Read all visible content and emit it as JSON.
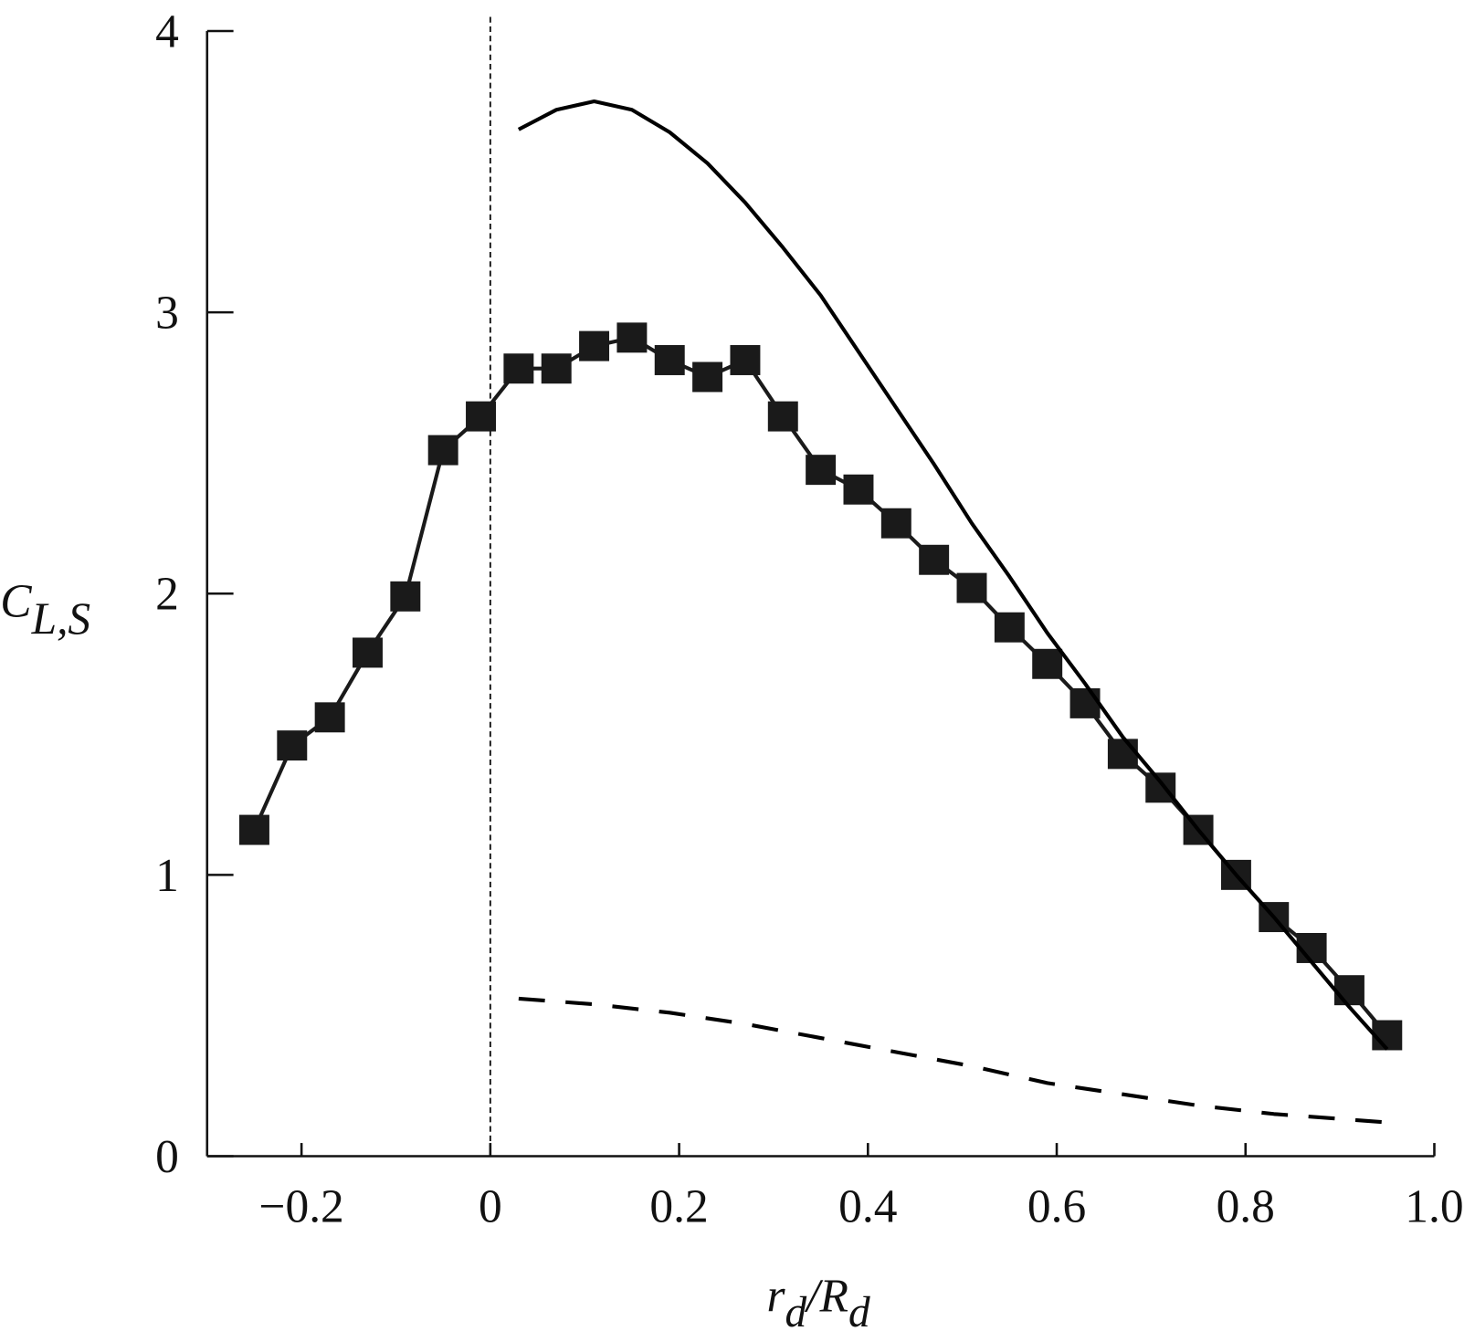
{
  "chart_data": {
    "type": "line",
    "ylabel": {
      "base": "C",
      "subscript": "L,S"
    },
    "xlabel": [
      "r",
      "d",
      "/",
      "R",
      "d"
    ],
    "xlim": [
      -0.3,
      1.0
    ],
    "ylim": [
      0,
      4
    ],
    "xticks": [
      {
        "value": -0.2,
        "label": "−0.2"
      },
      0,
      0.2,
      0.4,
      0.6,
      0.8,
      {
        "value": 1.0,
        "label": "1.0"
      }
    ],
    "yticks": [
      0,
      1,
      2,
      3,
      4
    ],
    "vline": 0,
    "series": [
      {
        "style": "markers",
        "color": "#1a1a1a",
        "x": [
          -0.25,
          -0.21,
          -0.17,
          -0.13,
          -0.09,
          -0.05,
          -0.01,
          0.03,
          0.07,
          0.11,
          0.15,
          0.19,
          0.23,
          0.27,
          0.31,
          0.35,
          0.39,
          0.43,
          0.47,
          0.51,
          0.55,
          0.59,
          0.63,
          0.67,
          0.71,
          0.75,
          0.79,
          0.83,
          0.87,
          0.91,
          0.95
        ],
        "values": [
          1.16,
          1.46,
          1.56,
          1.79,
          1.99,
          2.51,
          2.63,
          2.8,
          2.8,
          2.88,
          2.91,
          2.83,
          2.77,
          2.83,
          2.63,
          2.44,
          2.37,
          2.25,
          2.12,
          2.02,
          1.88,
          1.75,
          1.61,
          1.43,
          1.31,
          1.16,
          1.0,
          0.85,
          0.74,
          0.59,
          0.43
        ]
      },
      {
        "style": "solid",
        "color": "#000000",
        "x": [
          0.03,
          0.07,
          0.11,
          0.15,
          0.19,
          0.23,
          0.27,
          0.31,
          0.35,
          0.39,
          0.43,
          0.47,
          0.51,
          0.55,
          0.59,
          0.63,
          0.67,
          0.71,
          0.75,
          0.79,
          0.83,
          0.87,
          0.91,
          0.95
        ],
        "values": [
          3.65,
          3.72,
          3.75,
          3.72,
          3.64,
          3.53,
          3.39,
          3.23,
          3.06,
          2.86,
          2.66,
          2.46,
          2.25,
          2.06,
          1.86,
          1.68,
          1.49,
          1.33,
          1.16,
          1.0,
          0.85,
          0.69,
          0.53,
          0.38
        ]
      },
      {
        "style": "dashed",
        "color": "#000000",
        "x": [
          0.03,
          0.11,
          0.19,
          0.27,
          0.35,
          0.43,
          0.51,
          0.59,
          0.67,
          0.75,
          0.83,
          0.95
        ],
        "values": [
          0.56,
          0.54,
          0.51,
          0.47,
          0.42,
          0.37,
          0.32,
          0.26,
          0.22,
          0.18,
          0.15,
          0.12
        ]
      }
    ]
  }
}
